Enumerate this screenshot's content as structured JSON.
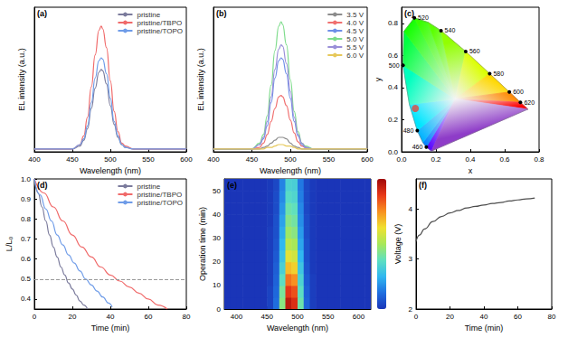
{
  "chart_data": [
    {
      "title": "(a)",
      "type": "line",
      "x_label": "Wavelength (nm)",
      "y_label": "EL intensity (a.u.)",
      "xlim": [
        400,
        600
      ],
      "xticks": [
        400,
        450,
        500,
        550,
        600
      ],
      "ylim": [
        0,
        1
      ],
      "tick_labels": "x",
      "legend": "upper right",
      "x": [
        400,
        440,
        450,
        460,
        465,
        470,
        475,
        480,
        485,
        488,
        490,
        495,
        500,
        505,
        510,
        515,
        520,
        530,
        540,
        560,
        600
      ],
      "series": [
        {
          "name": "pristine",
          "color": "#7b7b9c",
          "values": [
            0.02,
            0.02,
            0.02,
            0.04,
            0.08,
            0.16,
            0.3,
            0.44,
            0.55,
            0.57,
            0.56,
            0.47,
            0.32,
            0.19,
            0.1,
            0.05,
            0.03,
            0.02,
            0.02,
            0.02,
            0.02
          ]
        },
        {
          "name": "pristine/TBPO",
          "color": "#f06a6a",
          "values": [
            0.02,
            0.02,
            0.02,
            0.05,
            0.11,
            0.24,
            0.45,
            0.67,
            0.84,
            0.87,
            0.85,
            0.72,
            0.49,
            0.28,
            0.14,
            0.06,
            0.04,
            0.02,
            0.02,
            0.02,
            0.02
          ]
        },
        {
          "name": "pristine/TOPO",
          "color": "#6f9ce8",
          "values": [
            0.02,
            0.02,
            0.02,
            0.05,
            0.09,
            0.18,
            0.34,
            0.51,
            0.63,
            0.65,
            0.64,
            0.54,
            0.37,
            0.21,
            0.11,
            0.05,
            0.03,
            0.02,
            0.02,
            0.02,
            0.02
          ]
        }
      ]
    },
    {
      "title": "(b)",
      "type": "line",
      "x_label": "Wavelength (nm)",
      "y_label": "EL intensity (a.u.)",
      "xlim": [
        400,
        600
      ],
      "xticks": [
        400,
        450,
        500,
        550,
        600
      ],
      "ylim": [
        0,
        1
      ],
      "tick_labels": "x",
      "legend": "upper right",
      "x": [
        400,
        440,
        450,
        460,
        465,
        470,
        475,
        480,
        485,
        488,
        490,
        495,
        500,
        505,
        510,
        515,
        520,
        530,
        540,
        560,
        600
      ],
      "series": [
        {
          "name": "3.5 V",
          "color": "#8c8c8c",
          "values": [
            0.02,
            0.02,
            0.02,
            0.02,
            0.03,
            0.04,
            0.06,
            0.08,
            0.1,
            0.1,
            0.1,
            0.09,
            0.06,
            0.04,
            0.03,
            0.02,
            0.02,
            0.02,
            0.02,
            0.02,
            0.02
          ]
        },
        {
          "name": "4.0 V",
          "color": "#f07070",
          "values": [
            0.02,
            0.02,
            0.02,
            0.03,
            0.06,
            0.12,
            0.21,
            0.3,
            0.38,
            0.39,
            0.38,
            0.32,
            0.22,
            0.13,
            0.07,
            0.04,
            0.03,
            0.02,
            0.02,
            0.02,
            0.02
          ]
        },
        {
          "name": "4.5 V",
          "color": "#6f8fe8",
          "values": [
            0.02,
            0.02,
            0.02,
            0.05,
            0.09,
            0.18,
            0.34,
            0.51,
            0.63,
            0.65,
            0.64,
            0.54,
            0.37,
            0.21,
            0.11,
            0.05,
            0.03,
            0.02,
            0.02,
            0.02,
            0.02
          ]
        },
        {
          "name": "5.0 V",
          "color": "#7fdc8c",
          "values": [
            0.02,
            0.02,
            0.02,
            0.06,
            0.12,
            0.25,
            0.46,
            0.7,
            0.87,
            0.9,
            0.88,
            0.74,
            0.5,
            0.28,
            0.14,
            0.06,
            0.04,
            0.02,
            0.02,
            0.02,
            0.02
          ]
        },
        {
          "name": "5.5 V",
          "color": "#9a8fd8",
          "values": [
            0.02,
            0.02,
            0.02,
            0.05,
            0.1,
            0.21,
            0.38,
            0.57,
            0.71,
            0.74,
            0.73,
            0.61,
            0.42,
            0.24,
            0.12,
            0.06,
            0.03,
            0.02,
            0.02,
            0.02,
            0.02
          ]
        },
        {
          "name": "6.0 V",
          "color": "#e6c85a",
          "values": [
            0.02,
            0.02,
            0.02,
            0.02,
            0.02,
            0.03,
            0.03,
            0.04,
            0.05,
            0.05,
            0.05,
            0.04,
            0.04,
            0.03,
            0.02,
            0.02,
            0.02,
            0.02,
            0.02,
            0.02,
            0.02
          ]
        }
      ]
    },
    {
      "title": "(c)",
      "type": "chromaticity",
      "x_label": "x",
      "y_label": "y",
      "xlim": [
        0,
        0.8
      ],
      "xticks": [
        {
          "value": 0,
          "label": "0.0"
        },
        0.2,
        0.4,
        0.6,
        0.8
      ],
      "ylim": [
        0,
        0.9
      ],
      "yticks": [
        {
          "value": 0,
          "label": "0.0"
        },
        0.2,
        0.4,
        0.6,
        0.8
      ],
      "locus": {
        "wavelengths": [
          380,
          460,
          470,
          480,
          490,
          500,
          510,
          520,
          530,
          540,
          560,
          580,
          600,
          620,
          700
        ],
        "x": [
          0.1741,
          0.144,
          0.1241,
          0.0913,
          0.0454,
          0.0082,
          0.0139,
          0.0743,
          0.1547,
          0.2296,
          0.3731,
          0.5125,
          0.627,
          0.6915,
          0.7347
        ],
        "y": [
          0.005,
          0.0297,
          0.0578,
          0.1327,
          0.295,
          0.5384,
          0.7502,
          0.8338,
          0.8059,
          0.7543,
          0.6245,
          0.4866,
          0.3725,
          0.3083,
          0.2653
        ],
        "labels": [
          null,
          460,
          null,
          480,
          null,
          500,
          null,
          520,
          null,
          540,
          560,
          580,
          600,
          620,
          null
        ]
      },
      "point": {
        "x": 0.08,
        "y": 0.27,
        "color": "#e5483f",
        "marker": "circle"
      }
    },
    {
      "title": "(d)",
      "type": "line",
      "x_label": "Time (min)",
      "y_label": "L/L₀",
      "xlim": [
        0,
        80
      ],
      "xticks": [
        0,
        20,
        40,
        60,
        80
      ],
      "ylim": [
        0.35,
        1.0
      ],
      "yticks": [
        0.4,
        0.5,
        0.6,
        0.7,
        0.8,
        0.9,
        {
          "value": 1,
          "label": "1.0"
        }
      ],
      "legend": "upper right",
      "hline": {
        "y": 0.5,
        "line_style": "dashed"
      },
      "series": [
        {
          "name": "pristine",
          "color": "#7b7b9c",
          "x": [
            0,
            2,
            4,
            6,
            8,
            10,
            12,
            14,
            16,
            18,
            20,
            22,
            24,
            26,
            28
          ],
          "values": [
            1,
            0.93,
            0.86,
            0.79,
            0.72,
            0.66,
            0.61,
            0.56,
            0.52,
            0.48,
            0.45,
            0.42,
            0.39,
            0.37,
            0.35
          ]
        },
        {
          "name": "pristine/TBPO",
          "color": "#f06a6a",
          "x": [
            0,
            5,
            10,
            15,
            20,
            25,
            30,
            35,
            40,
            45,
            50,
            55,
            60,
            65,
            70
          ],
          "values": [
            1,
            0.93,
            0.86,
            0.79,
            0.72,
            0.66,
            0.61,
            0.56,
            0.52,
            0.49,
            0.46,
            0.43,
            0.4,
            0.37,
            0.35
          ]
        },
        {
          "name": "pristine/TOPO",
          "color": "#6f9ce8",
          "x": [
            0,
            3,
            6,
            9,
            12,
            15,
            18,
            21,
            24,
            27,
            30,
            33,
            36,
            39,
            41
          ],
          "values": [
            1,
            0.92,
            0.85,
            0.79,
            0.72,
            0.67,
            0.62,
            0.58,
            0.54,
            0.5,
            0.47,
            0.44,
            0.41,
            0.38,
            0.36
          ]
        }
      ]
    },
    {
      "title": "(e)",
      "type": "heatmap",
      "x_label": "Wavelength (nm)",
      "y_label": "Operation time (min)",
      "xlim": [
        380,
        620
      ],
      "xticks": [
        400,
        450,
        500,
        550,
        600
      ],
      "ylim": [
        0,
        55
      ],
      "yticks": [
        0,
        10,
        20,
        30,
        40,
        50
      ],
      "xbins": [
        380,
        390,
        400,
        410,
        420,
        430,
        440,
        450,
        460,
        470,
        480,
        490,
        500,
        510,
        520,
        530,
        540,
        550,
        560,
        570,
        580,
        590,
        600,
        610,
        620
      ],
      "ybins": [
        0,
        5,
        10,
        15,
        20,
        25,
        30,
        35,
        40,
        45,
        50,
        55
      ],
      "cells": [
        [
          0,
          0,
          0,
          0,
          0,
          0,
          0,
          0.03,
          0.12,
          0.45,
          0.95,
          0.9,
          0.4,
          0.1,
          0.02,
          0,
          0,
          0,
          0,
          0,
          0,
          0,
          0,
          0
        ],
        [
          0,
          0,
          0,
          0,
          0,
          0,
          0,
          0.03,
          0.11,
          0.42,
          0.88,
          0.84,
          0.37,
          0.09,
          0.02,
          0,
          0,
          0,
          0,
          0,
          0,
          0,
          0,
          0
        ],
        [
          0,
          0,
          0,
          0,
          0,
          0,
          0,
          0.02,
          0.1,
          0.37,
          0.79,
          0.75,
          0.33,
          0.08,
          0.02,
          0,
          0,
          0,
          0,
          0,
          0,
          0,
          0,
          0
        ],
        [
          0,
          0,
          0,
          0,
          0,
          0,
          0,
          0.02,
          0.09,
          0.32,
          0.68,
          0.65,
          0.29,
          0.07,
          0.01,
          0,
          0,
          0,
          0,
          0,
          0,
          0,
          0,
          0
        ],
        [
          0,
          0,
          0,
          0,
          0,
          0,
          0,
          0.02,
          0.08,
          0.28,
          0.6,
          0.57,
          0.25,
          0.06,
          0.01,
          0,
          0,
          0,
          0,
          0,
          0,
          0,
          0,
          0
        ],
        [
          0,
          0,
          0,
          0,
          0,
          0,
          0,
          0.02,
          0.07,
          0.25,
          0.53,
          0.5,
          0.22,
          0.06,
          0.01,
          0,
          0,
          0,
          0,
          0,
          0,
          0,
          0,
          0
        ],
        [
          0,
          0,
          0,
          0,
          0,
          0,
          0,
          0.02,
          0.06,
          0.23,
          0.48,
          0.45,
          0.2,
          0.05,
          0.01,
          0,
          0,
          0,
          0,
          0,
          0,
          0,
          0,
          0
        ],
        [
          0,
          0,
          0,
          0,
          0,
          0,
          0,
          0.01,
          0.06,
          0.21,
          0.44,
          0.41,
          0.18,
          0.05,
          0.01,
          0,
          0,
          0,
          0,
          0,
          0,
          0,
          0,
          0
        ],
        [
          0,
          0,
          0,
          0,
          0,
          0,
          0,
          0.01,
          0.05,
          0.19,
          0.4,
          0.38,
          0.17,
          0.04,
          0.01,
          0,
          0,
          0,
          0,
          0,
          0,
          0,
          0,
          0
        ],
        [
          0,
          0,
          0,
          0,
          0,
          0,
          0,
          0.01,
          0.05,
          0.17,
          0.36,
          0.34,
          0.15,
          0.04,
          0.01,
          0,
          0,
          0,
          0,
          0,
          0,
          0,
          0,
          0
        ],
        [
          0,
          0,
          0,
          0,
          0,
          0,
          0,
          0.01,
          0.04,
          0.16,
          0.33,
          0.32,
          0.14,
          0.04,
          0.01,
          0,
          0,
          0,
          0,
          0,
          0,
          0,
          0,
          0
        ]
      ],
      "colorbar": {
        "range": [
          0,
          1
        ]
      }
    },
    {
      "title": "(f)",
      "type": "line",
      "x_label": "Time (min)",
      "y_label": "Voltage (V)",
      "xlim": [
        0,
        80
      ],
      "xticks": [
        0,
        20,
        40,
        60,
        80
      ],
      "ylim": [
        2,
        4.6
      ],
      "yticks": [
        2,
        3,
        4
      ],
      "x": [
        0,
        2,
        5,
        10,
        15,
        20,
        25,
        30,
        35,
        40,
        45,
        50,
        55,
        60,
        65,
        70
      ],
      "series": [
        {
          "color": "#4d4d4d",
          "values": [
            3.35,
            3.48,
            3.6,
            3.75,
            3.85,
            3.92,
            3.97,
            4.02,
            4.05,
            4.08,
            4.11,
            4.13,
            4.16,
            4.18,
            4.2,
            4.22
          ]
        }
      ]
    }
  ]
}
